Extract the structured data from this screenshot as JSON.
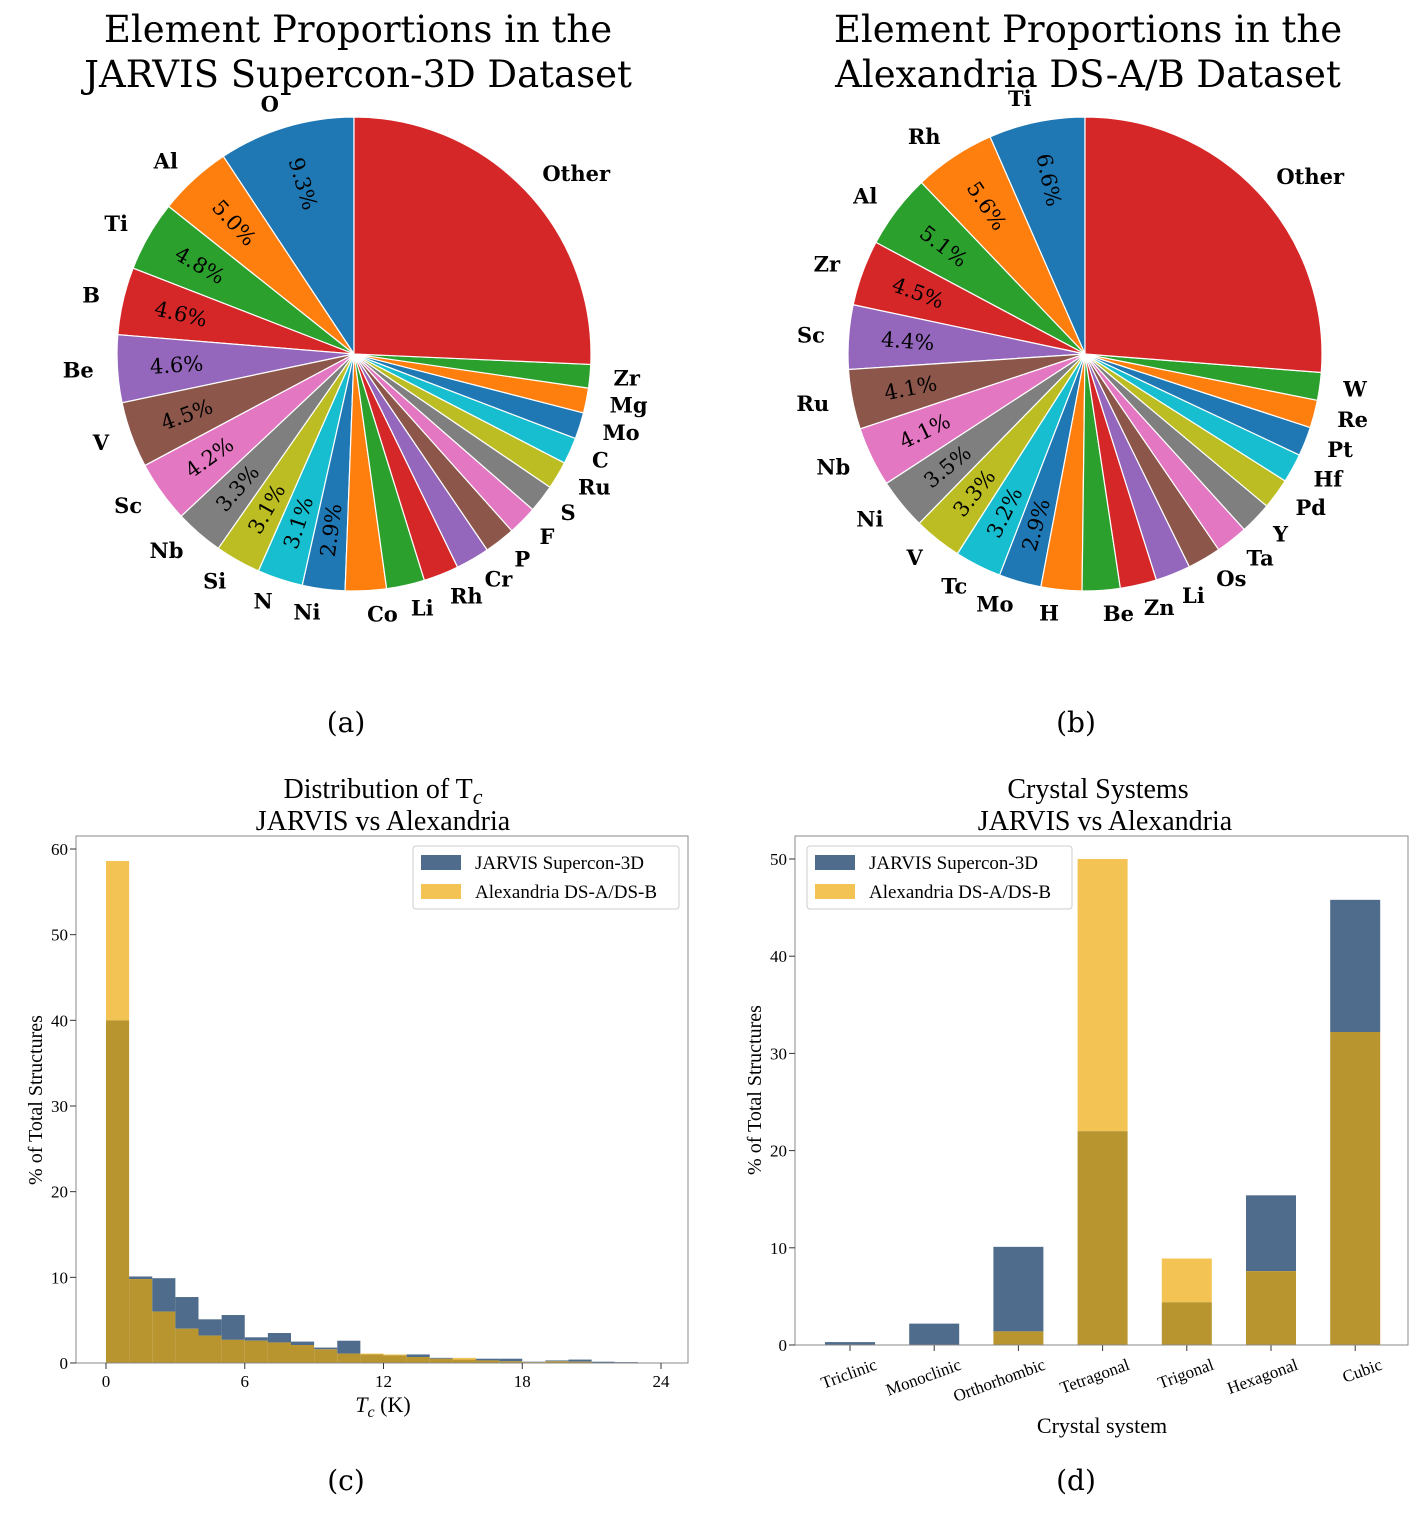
{
  "colors": {
    "tab10": [
      "#1f77b4",
      "#ff7f0e",
      "#2ca02c",
      "#d62728",
      "#9467bd",
      "#8c564b",
      "#e377c2",
      "#7f7f7f",
      "#bcbd22",
      "#17becf"
    ],
    "jarvis": "#506c8c",
    "alexandria": "#f3c453",
    "overlap": "#b9952f"
  },
  "chart_data": [
    {
      "type": "pie",
      "panel_label": "(a)",
      "title": [
        "Element Proportions in the",
        "JARVIS Supercon-3D Dataset"
      ],
      "start_angle": 90,
      "labels": [
        "O",
        "Al",
        "Ti",
        "B",
        "Be",
        "V",
        "Sc",
        "Nb",
        "Si",
        "N",
        "Ni",
        "Co",
        "Li",
        "Rh",
        "Cr",
        "P",
        "F",
        "S",
        "Ru",
        "C",
        "Mo",
        "Mg",
        "Zr",
        "Other"
      ],
      "values": [
        9.3,
        5.0,
        4.8,
        4.6,
        4.6,
        4.5,
        4.2,
        3.3,
        3.1,
        3.1,
        2.9,
        2.8,
        2.6,
        2.4,
        2.3,
        2.1,
        2.0,
        1.9,
        1.9,
        1.8,
        1.8,
        1.7,
        1.6,
        25.7
      ],
      "pct_labels": [
        "9.3%",
        "5.0%",
        "4.8%",
        "4.6%",
        "4.6%",
        "4.5%",
        "4.2%",
        "3.3%",
        "3.1%",
        "3.1%",
        "2.9%",
        "",
        "",
        "",
        "",
        "",
        "",
        "",
        "",
        "",
        "",
        "",
        "",
        ""
      ]
    },
    {
      "type": "pie",
      "panel_label": "(b)",
      "title": [
        "Element Proportions in the",
        "Alexandria DS-A/B Dataset"
      ],
      "start_angle": 90,
      "labels": [
        "Ti",
        "Rh",
        "Al",
        "Zr",
        "Sc",
        "Ru",
        "Nb",
        "Ni",
        "V",
        "Tc",
        "Mo",
        "H",
        "Be",
        "Zn",
        "Li",
        "Os",
        "Ta",
        "Y",
        "Pd",
        "Hf",
        "Pt",
        "Re",
        "W",
        "Other"
      ],
      "values": [
        6.6,
        5.6,
        5.1,
        4.5,
        4.4,
        4.1,
        4.1,
        3.5,
        3.3,
        3.2,
        2.9,
        2.8,
        2.6,
        2.5,
        2.4,
        2.3,
        2.2,
        2.2,
        2.1,
        2.0,
        2.0,
        1.9,
        1.9,
        26.4
      ],
      "pct_labels": [
        "6.6%",
        "5.6%",
        "5.1%",
        "4.5%",
        "4.4%",
        "4.1%",
        "4.1%",
        "3.5%",
        "3.3%",
        "3.2%",
        "2.9%",
        "",
        "",
        "",
        "",
        "",
        "",
        "",
        "",
        "",
        "",
        "",
        "",
        ""
      ]
    },
    {
      "type": "bar",
      "subtype": "histogram",
      "panel_label": "(c)",
      "title_prefix": "Distribution of T",
      "title_subscript": "c",
      "title_line2": "JARVIS vs Alexandria",
      "xlabel_main": "T",
      "xlabel_sub": "c",
      "xlabel_unit": " (K)",
      "ylabel": "% of Total Structures",
      "xlim": [
        -2.6,
        26
      ],
      "ylim": [
        0,
        61.5
      ],
      "xticks": [
        0,
        6,
        12,
        18,
        24
      ],
      "yticks": [
        0,
        10,
        20,
        30,
        40,
        50,
        60
      ],
      "bin_width": 1,
      "bin_edges_start": 0,
      "legend_position": "top-right",
      "series": [
        {
          "name": "JARVIS Supercon-3D",
          "values": [
            40.0,
            10.1,
            9.9,
            7.7,
            5.1,
            5.6,
            3.0,
            3.5,
            2.5,
            1.8,
            2.6,
            1.0,
            0.9,
            1.0,
            0.6,
            0.4,
            0.5,
            0.5,
            0.15,
            0.3,
            0.4,
            0.15,
            0.1
          ]
        },
        {
          "name": "Alexandria DS-A/DS-B",
          "values": [
            58.6,
            9.8,
            6.0,
            4.0,
            3.2,
            2.7,
            2.6,
            2.4,
            2.1,
            1.6,
            1.1,
            1.1,
            1.0,
            0.7,
            0.5,
            0.6,
            0.3,
            0.2,
            0.1,
            0.2,
            0.15,
            0,
            0
          ]
        }
      ]
    },
    {
      "type": "bar",
      "panel_label": "(d)",
      "title": [
        "Crystal Systems",
        "JARVIS vs Alexandria"
      ],
      "xlabel": "Crystal system",
      "ylabel": "% of Total Structures",
      "ylim": [
        0,
        52.5
      ],
      "yticks": [
        0,
        10,
        20,
        30,
        40,
        50
      ],
      "legend_position": "top-left",
      "categories": [
        "Triclinic",
        "Monoclinic",
        "Orthorhombic",
        "Tetragonal",
        "Trigonal",
        "Hexagonal",
        "Cubic"
      ],
      "series": [
        {
          "name": "JARVIS Supercon-3D",
          "values": [
            0.3,
            2.2,
            10.1,
            22.0,
            4.4,
            15.4,
            45.8
          ]
        },
        {
          "name": "Alexandria DS-A/DS-B",
          "values": [
            0,
            0,
            1.4,
            50.0,
            8.9,
            7.6,
            32.2
          ]
        }
      ]
    }
  ]
}
